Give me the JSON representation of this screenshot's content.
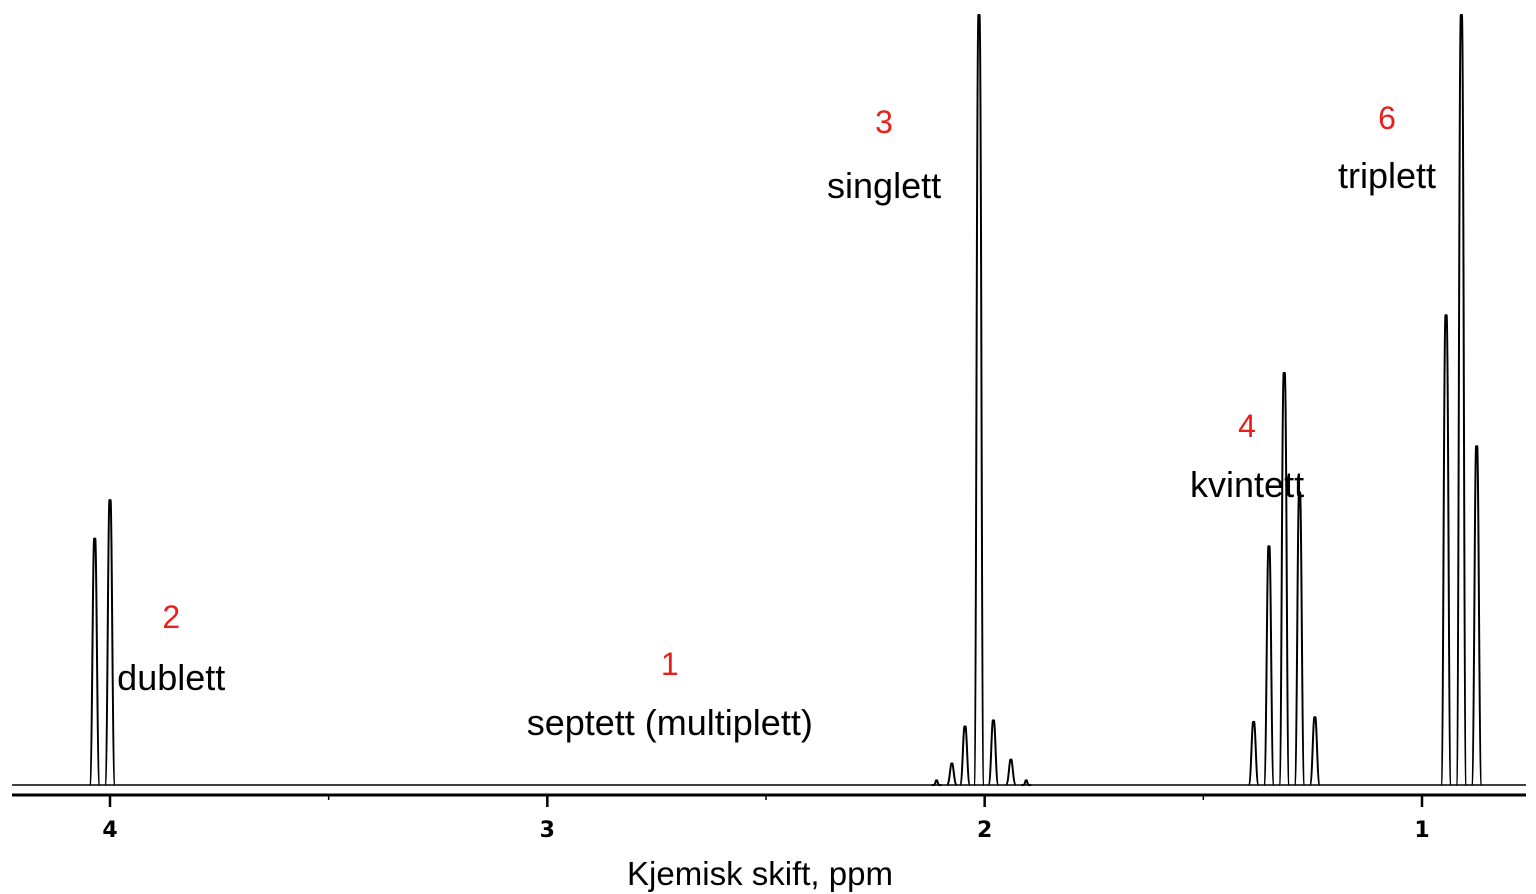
{
  "chart_data": {
    "type": "line",
    "xlabel": "Kjemisk skift, ppm",
    "x_reversed": true,
    "xlim": [
      4.23,
      0.77
    ],
    "ylim": [
      0,
      100
    ],
    "x_ticks_major": [
      "4",
      "3",
      "2",
      "1"
    ],
    "x_ticks_minor": [
      3.5,
      2.5,
      1.5
    ],
    "colors": {
      "line": "#000000",
      "count": "#e8201b"
    },
    "peaks": [
      {
        "ppm": 4.035,
        "h": 32.0
      },
      {
        "ppm": 4.0,
        "h": 37.0
      },
      {
        "ppm": 2.11,
        "h": 0.6
      },
      {
        "ppm": 2.075,
        "h": 2.8
      },
      {
        "ppm": 2.045,
        "h": 7.6
      },
      {
        "ppm": 1.98,
        "h": 8.4
      },
      {
        "ppm": 1.94,
        "h": 3.3
      },
      {
        "ppm": 1.905,
        "h": 0.6
      },
      {
        "ppm": 2.013,
        "h": 100.0
      },
      {
        "ppm": 1.385,
        "h": 8.2
      },
      {
        "ppm": 1.35,
        "h": 31.0
      },
      {
        "ppm": 1.315,
        "h": 53.5
      },
      {
        "ppm": 1.28,
        "h": 38.0
      },
      {
        "ppm": 1.245,
        "h": 8.8
      },
      {
        "ppm": 0.945,
        "h": 61.0
      },
      {
        "ppm": 0.91,
        "h": 100.0
      },
      {
        "ppm": 0.875,
        "h": 44.0
      }
    ],
    "multiplets": [
      {
        "count": "2",
        "name": "dublett",
        "ppm": 3.86,
        "anchor": "middle"
      },
      {
        "count": "1",
        "name": "septett (multiplett)",
        "ppm": 2.72,
        "anchor": "middle"
      },
      {
        "count": "3",
        "name": "singlett",
        "ppm": 2.23,
        "anchor": "middle"
      },
      {
        "count": "4",
        "name": "kvintett",
        "ppm": 1.4,
        "anchor": "middle"
      },
      {
        "count": "6",
        "name": "triplett",
        "ppm": 1.08,
        "anchor": "middle"
      }
    ]
  }
}
